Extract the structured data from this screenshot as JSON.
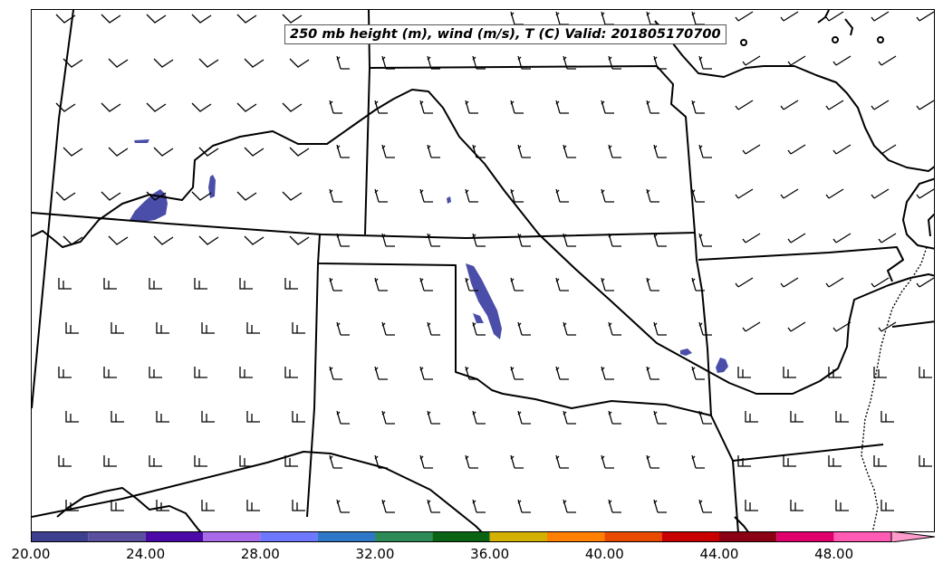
{
  "title": "250 mb height (m), wind (m/s), T (C) Valid: 201805170700",
  "colorbar": {
    "tick_labels": [
      "20.00",
      "24.00",
      "28.00",
      "32.00",
      "36.00",
      "40.00",
      "44.00",
      "48.00"
    ],
    "tick_values": [
      20,
      24,
      28,
      32,
      36,
      40,
      44,
      48
    ],
    "min": 20,
    "max": 51.5,
    "bins": [
      {
        "from": 20,
        "to": 22,
        "color": "#3f3f8f"
      },
      {
        "from": 22,
        "to": 24,
        "color": "#5a4f9e"
      },
      {
        "from": 24,
        "to": 26,
        "color": "#4b0aa8"
      },
      {
        "from": 26,
        "to": 28,
        "color": "#a86ae8"
      },
      {
        "from": 28,
        "to": 30,
        "color": "#6e78ff"
      },
      {
        "from": 30,
        "to": 32,
        "color": "#2f78c8"
      },
      {
        "from": 32,
        "to": 34,
        "color": "#2e8b57"
      },
      {
        "from": 34,
        "to": 36,
        "color": "#0b6414"
      },
      {
        "from": 36,
        "to": 38,
        "color": "#d4b000"
      },
      {
        "from": 38,
        "to": 40,
        "color": "#ff7f00"
      },
      {
        "from": 40,
        "to": 42,
        "color": "#e84a00"
      },
      {
        "from": 42,
        "to": 44,
        "color": "#c80000"
      },
      {
        "from": 44,
        "to": 46,
        "color": "#8c0014"
      },
      {
        "from": 46,
        "to": 48,
        "color": "#e0006c"
      },
      {
        "from": 48,
        "to": 50,
        "color": "#ff5ab4"
      },
      {
        "from": 50,
        "to": 51.5,
        "color": "#ff9ccc"
      }
    ],
    "extend": "max"
  },
  "wind_field_color": "#4a4ea8"
}
